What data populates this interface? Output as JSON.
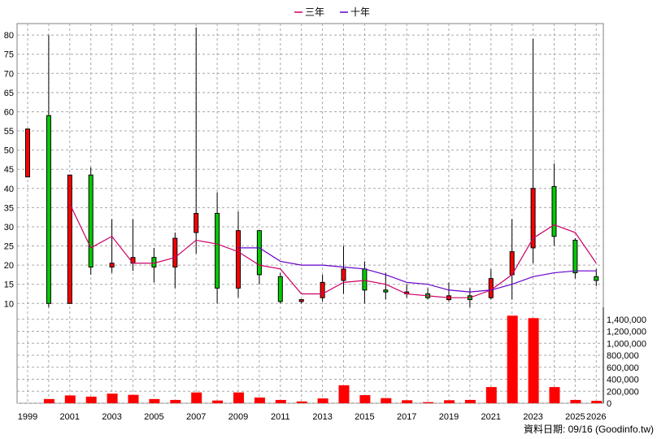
{
  "chart_data": {
    "type": "candlestick",
    "legend": {
      "placement": "top-center",
      "items": [
        {
          "label": "三年",
          "color": "#cc0066"
        },
        {
          "label": "十年",
          "color": "#6600cc"
        }
      ]
    },
    "x_tick_labels": [
      "1999",
      "2001",
      "2003",
      "2005",
      "2007",
      "2009",
      "2011",
      "2013",
      "2015",
      "2017",
      "2019",
      "2021",
      "2023",
      "2025",
      "2026"
    ],
    "price_axis": {
      "side": "left",
      "ylim": [
        9,
        83
      ],
      "ticks": [
        10,
        15,
        20,
        25,
        30,
        35,
        40,
        45,
        50,
        55,
        60,
        65,
        70,
        75,
        80
      ]
    },
    "volume_axis": {
      "side": "right",
      "ylim": [
        0,
        1600000
      ],
      "ticks": [
        0,
        200000,
        400000,
        600000,
        800000,
        1000000,
        1200000,
        1400000
      ],
      "tick_labels": [
        "0",
        "200,000",
        "400,000",
        "600,000",
        "800,000",
        "1,000,000",
        "1,200,000",
        "1,400,000"
      ]
    },
    "grid": true,
    "candles": [
      {
        "year": 1999,
        "open": 55.5,
        "close": 43,
        "high": 55.5,
        "low": 43
      },
      {
        "year": 2000,
        "open": 10,
        "close": 59,
        "high": 80,
        "low": 9
      },
      {
        "year": 2001,
        "open": 43.5,
        "close": 10,
        "high": 43.5,
        "low": 10
      },
      {
        "year": 2002,
        "open": 19.5,
        "close": 43.5,
        "high": 45.5,
        "low": 17.5
      },
      {
        "year": 2003,
        "open": 20.5,
        "close": 19.5,
        "high": 32,
        "low": 18
      },
      {
        "year": 2004,
        "open": 22,
        "close": 20.5,
        "high": 32,
        "low": 18.5
      },
      {
        "year": 2005,
        "open": 19.5,
        "close": 22,
        "high": 24.5,
        "low": 15.5
      },
      {
        "year": 2006,
        "open": 27,
        "close": 19.5,
        "high": 28.5,
        "low": 14
      },
      {
        "year": 2007,
        "open": 33.5,
        "close": 28.5,
        "high": 82,
        "low": 23
      },
      {
        "year": 2008,
        "open": 14,
        "close": 33.5,
        "high": 39,
        "low": 10
      },
      {
        "year": 2009,
        "open": 29,
        "close": 14,
        "high": 34,
        "low": 11.5
      },
      {
        "year": 2010,
        "open": 17.5,
        "close": 29,
        "high": 29,
        "low": 15
      },
      {
        "year": 2011,
        "open": 10.5,
        "close": 17,
        "high": 18,
        "low": 10
      },
      {
        "year": 2012,
        "open": 11,
        "close": 10.5,
        "high": 11,
        "low": 10
      },
      {
        "year": 2013,
        "open": 15.5,
        "close": 11.5,
        "high": 17.5,
        "low": 10.5
      },
      {
        "year": 2014,
        "open": 19,
        "close": 16,
        "high": 25,
        "low": 12.5
      },
      {
        "year": 2015,
        "open": 13.5,
        "close": 19,
        "high": 21,
        "low": 10
      },
      {
        "year": 2016,
        "open": 13,
        "close": 13.5,
        "high": 18,
        "low": 11
      },
      {
        "year": 2017,
        "open": 13,
        "close": 12.5,
        "high": 15,
        "low": 11.5
      },
      {
        "year": 2018,
        "open": 11.5,
        "close": 12.5,
        "high": 14,
        "low": 11
      },
      {
        "year": 2019,
        "open": 12,
        "close": 11,
        "high": 15.5,
        "low": 10.5
      },
      {
        "year": 2020,
        "open": 11,
        "close": 12,
        "high": 14,
        "low": 9
      },
      {
        "year": 2021,
        "open": 16.5,
        "close": 11.5,
        "high": 19,
        "low": 11
      },
      {
        "year": 2022,
        "open": 23.5,
        "close": 17.5,
        "high": 32,
        "low": 11
      },
      {
        "year": 2023,
        "open": 40,
        "close": 24.5,
        "high": 79,
        "low": 20.5
      },
      {
        "year": 2024,
        "open": 27.5,
        "close": 40.5,
        "high": 46.5,
        "low": 25
      },
      {
        "year": 2025,
        "open": 18,
        "close": 26.5,
        "high": 27,
        "low": 16.5
      },
      {
        "year": 2026,
        "open": 16,
        "close": 17,
        "high": 19,
        "low": 14.5
      }
    ],
    "series": [
      {
        "name": "三年",
        "color": "#cc0066",
        "x": [
          2001,
          2002,
          2003,
          2004,
          2005,
          2006,
          2007,
          2008,
          2009,
          2010,
          2011,
          2012,
          2013,
          2014,
          2015,
          2016,
          2017,
          2018,
          2019,
          2020,
          2021,
          2022,
          2023,
          2024,
          2025,
          2026
        ],
        "values": [
          36,
          24.5,
          27.5,
          20.5,
          20.5,
          22,
          26.5,
          25.5,
          23.5,
          20,
          19,
          12.5,
          12.5,
          15.5,
          16,
          15,
          12.5,
          12,
          11.5,
          11.5,
          13.5,
          17.5,
          27,
          30.5,
          28.5,
          20.5
        ]
      },
      {
        "name": "十年",
        "color": "#6600cc",
        "x": [
          2009,
          2010,
          2011,
          2012,
          2013,
          2014,
          2015,
          2016,
          2017,
          2018,
          2019,
          2020,
          2021,
          2022,
          2023,
          2024,
          2025,
          2026
        ],
        "values": [
          24.5,
          24.5,
          21,
          20,
          20,
          19.5,
          19,
          17.5,
          15.5,
          15,
          13.5,
          13,
          13.5,
          15,
          17,
          18,
          18.5,
          18.5
        ]
      }
    ],
    "volume": {
      "color": "#ff0000",
      "x": [
        1999,
        2000,
        2001,
        2002,
        2003,
        2004,
        2005,
        2006,
        2007,
        2008,
        2009,
        2010,
        2011,
        2012,
        2013,
        2014,
        2015,
        2016,
        2017,
        2018,
        2019,
        2020,
        2021,
        2022,
        2023,
        2024,
        2025,
        2026
      ],
      "values": [
        0,
        70000,
        130000,
        110000,
        160000,
        140000,
        70000,
        55000,
        180000,
        45000,
        180000,
        95000,
        55000,
        30000,
        80000,
        300000,
        135000,
        85000,
        50000,
        18000,
        50000,
        55000,
        270000,
        1460000,
        1420000,
        270000,
        55000,
        40000
      ]
    },
    "footnote": "資料日期: 09/16 (Goodinfo.tw)"
  }
}
